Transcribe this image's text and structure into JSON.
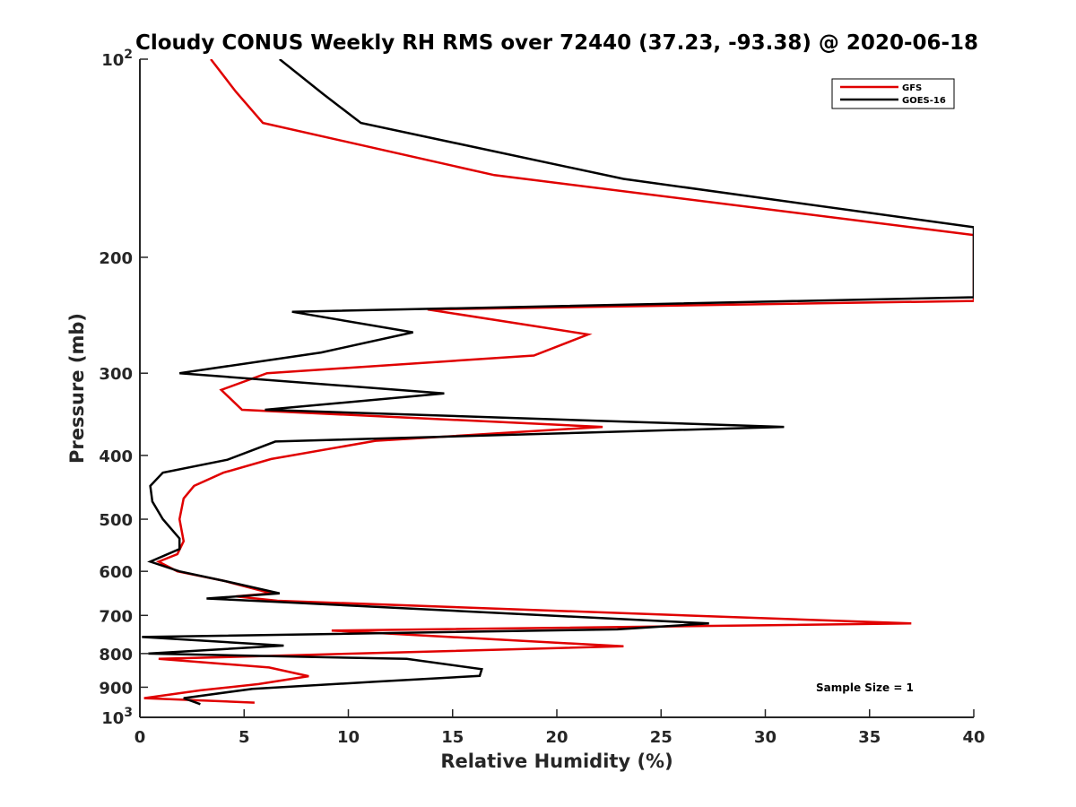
{
  "chart_data": {
    "type": "line",
    "title": "Cloudy CONUS Weekly RH RMS over 72440 (37.23, -93.38) @ 2020-06-18",
    "xlabel": "Relative Humidity (%)",
    "ylabel": "Pressure (mb)",
    "xlim": [
      0,
      40
    ],
    "ylim": [
      100,
      1000
    ],
    "y_scale": "log",
    "y_reversed": true,
    "grid": false,
    "legend_position": "top-right",
    "x_ticks": [
      "0",
      "5",
      "10",
      "15",
      "20",
      "25",
      "30",
      "35",
      "40"
    ],
    "y_ticks": [
      {
        "value": 100,
        "base": "10",
        "exp": "2"
      },
      {
        "value": 200,
        "label": "200"
      },
      {
        "value": 300,
        "label": "300"
      },
      {
        "value": 400,
        "label": "400"
      },
      {
        "value": 500,
        "label": "500"
      },
      {
        "value": 600,
        "label": "600"
      },
      {
        "value": 700,
        "label": "700"
      },
      {
        "value": 800,
        "label": "800"
      },
      {
        "value": 900,
        "label": "900"
      },
      {
        "value": 1000,
        "base": "10",
        "exp": "3"
      }
    ],
    "annotation": "Sample Size = 1",
    "series": [
      {
        "name": "GFS",
        "color": "#e00000",
        "points": [
          [
            3.4,
            100
          ],
          [
            4.6,
            112
          ],
          [
            5.9,
            125
          ],
          [
            17.0,
            150
          ],
          [
            40,
            185
          ],
          [
            40,
            233
          ],
          [
            13.8,
            240
          ],
          [
            21.5,
            262
          ],
          [
            18.9,
            282
          ],
          [
            6.1,
            300
          ],
          [
            3.9,
            318
          ],
          [
            4.9,
            341
          ],
          [
            22.2,
            362
          ],
          [
            11.3,
            380
          ],
          [
            6.3,
            405
          ],
          [
            4.0,
            425
          ],
          [
            2.6,
            445
          ],
          [
            2.1,
            465
          ],
          [
            1.9,
            500
          ],
          [
            2.1,
            540
          ],
          [
            1.8,
            565
          ],
          [
            0.9,
            580
          ],
          [
            1.8,
            600
          ],
          [
            4.0,
            620
          ],
          [
            6.3,
            648
          ],
          [
            4.6,
            655
          ],
          [
            6.6,
            665
          ],
          [
            37.0,
            720
          ],
          [
            9.2,
            738
          ],
          [
            23.2,
            780
          ],
          [
            0.9,
            815
          ],
          [
            6.2,
            840
          ],
          [
            8.1,
            866
          ],
          [
            5.7,
            890
          ],
          [
            2.9,
            910
          ],
          [
            0.2,
            935
          ],
          [
            5.5,
            950
          ]
        ]
      },
      {
        "name": "GOES-16",
        "color": "#000000",
        "points": [
          [
            6.7,
            100
          ],
          [
            8.8,
            113
          ],
          [
            10.6,
            125
          ],
          [
            23.2,
            152
          ],
          [
            40,
            180
          ],
          [
            40,
            230
          ],
          [
            7.3,
            242
          ],
          [
            13.1,
            260
          ],
          [
            8.7,
            279
          ],
          [
            1.9,
            300
          ],
          [
            14.6,
            322
          ],
          [
            6.0,
            341
          ],
          [
            30.9,
            362
          ],
          [
            6.5,
            381
          ],
          [
            4.2,
            406
          ],
          [
            1.1,
            425
          ],
          [
            0.5,
            445
          ],
          [
            0.6,
            470
          ],
          [
            1.1,
            500
          ],
          [
            1.9,
            535
          ],
          [
            1.9,
            555
          ],
          [
            0.5,
            580
          ],
          [
            1.9,
            600
          ],
          [
            4.2,
            622
          ],
          [
            6.7,
            648
          ],
          [
            3.2,
            660
          ],
          [
            6.7,
            668
          ],
          [
            27.3,
            720
          ],
          [
            22.9,
            735
          ],
          [
            0.1,
            755
          ],
          [
            6.9,
            778
          ],
          [
            0.4,
            800
          ],
          [
            12.8,
            815
          ],
          [
            16.4,
            845
          ],
          [
            16.3,
            865
          ],
          [
            11.3,
            883
          ],
          [
            5.4,
            905
          ],
          [
            2.1,
            935
          ],
          [
            2.9,
            955
          ]
        ]
      }
    ]
  }
}
